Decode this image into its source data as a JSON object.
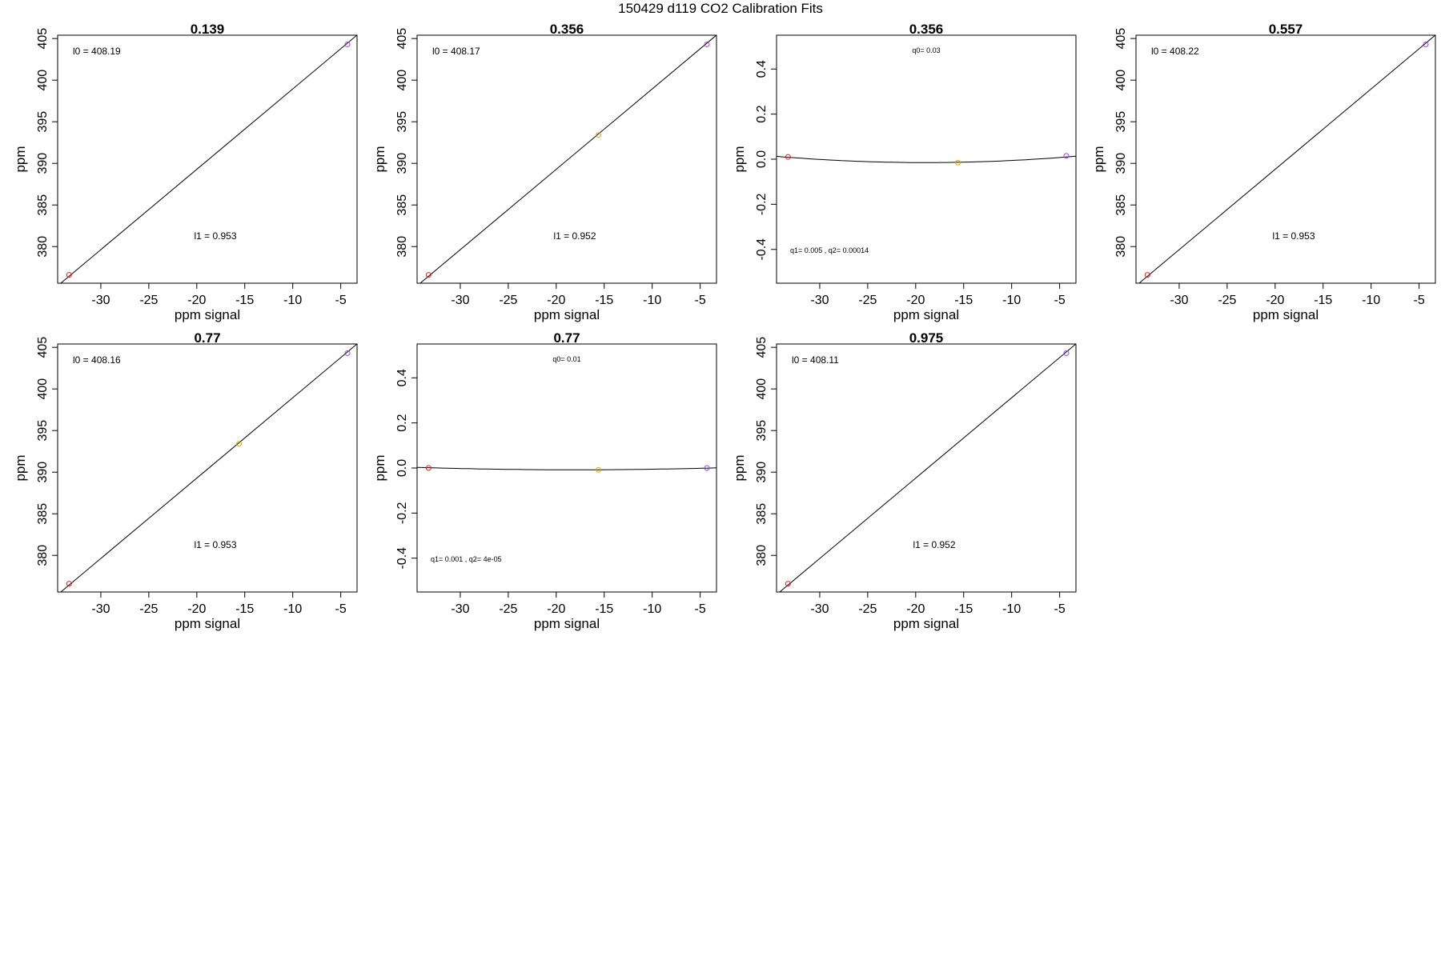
{
  "figure": {
    "title": "150429   d119   CO2 Calibration Fits"
  },
  "colors": {
    "point_low": "#e02020",
    "point_mid": "#e8a000",
    "point_high": "#a040e0",
    "fit_line": "#000000"
  },
  "chart_data": [
    {
      "type": "scatter",
      "title": "0.139",
      "xlabel": "ppm signal",
      "ylabel": "ppm",
      "xlim": [
        -34.5,
        -3.3
      ],
      "ylim": [
        375.6,
        405.4
      ],
      "xticks": [
        -30,
        -25,
        -20,
        -15,
        -10,
        -5
      ],
      "yticks": [
        380,
        385,
        390,
        395,
        400,
        405
      ],
      "fit": {
        "kind": "linear",
        "line_from": [
          -35.0,
          374.8
        ],
        "line_to": [
          -3.0,
          405.7
        ]
      },
      "points": [
        {
          "x": -33.3,
          "y": 376.6,
          "color": "red"
        },
        {
          "x": -4.3,
          "y": 404.3,
          "color": "purple"
        }
      ],
      "annotations": [
        {
          "label": "l0 =",
          "value": "408.19",
          "pos": "top-left"
        },
        {
          "label": "l1 =",
          "value": "0.953",
          "pos": "bottom-center"
        }
      ]
    },
    {
      "type": "scatter",
      "title": "0.356",
      "xlabel": "ppm signal",
      "ylabel": "ppm",
      "xlim": [
        -34.5,
        -3.3
      ],
      "ylim": [
        375.6,
        405.4
      ],
      "xticks": [
        -30,
        -25,
        -20,
        -15,
        -10,
        -5
      ],
      "yticks": [
        380,
        385,
        390,
        395,
        400,
        405
      ],
      "fit": {
        "kind": "linear",
        "line_from": [
          -35.0,
          374.8
        ],
        "line_to": [
          -3.0,
          405.7
        ]
      },
      "points": [
        {
          "x": -33.3,
          "y": 376.6,
          "color": "red"
        },
        {
          "x": -15.6,
          "y": 393.4,
          "color": "orange"
        },
        {
          "x": -4.3,
          "y": 404.3,
          "color": "purple"
        }
      ],
      "annotations": [
        {
          "label": "l0 =",
          "value": "408.17",
          "pos": "top-left"
        },
        {
          "label": "l1 =",
          "value": "0.952",
          "pos": "bottom-center"
        }
      ]
    },
    {
      "type": "scatter",
      "title": "0.356",
      "xlabel": "ppm signal",
      "ylabel": "ppm",
      "xlim": [
        -34.5,
        -3.3
      ],
      "ylim": [
        -0.55,
        0.55
      ],
      "xticks": [
        -30,
        -25,
        -20,
        -15,
        -10,
        -5
      ],
      "yticks": [
        -0.4,
        -0.2,
        0.0,
        0.2,
        0.4
      ],
      "fit": {
        "kind": "quadratic",
        "vertex_x": -19,
        "vertex_y": -0.015,
        "curvature": 0.000115
      },
      "points": [
        {
          "x": -33.3,
          "y": 0.01,
          "color": "red"
        },
        {
          "x": -15.6,
          "y": -0.015,
          "color": "orange"
        },
        {
          "x": -4.3,
          "y": 0.015,
          "color": "purple"
        }
      ],
      "annotations": [
        {
          "label": "q0=",
          "value": "0.03",
          "pos": "top-center"
        },
        {
          "label": "q1=",
          "value": "0.005 , q2= 0.00014",
          "pos": "bottom-left"
        }
      ]
    },
    {
      "type": "scatter",
      "title": "0.557",
      "xlabel": "ppm signal",
      "ylabel": "ppm",
      "xlim": [
        -34.5,
        -3.3
      ],
      "ylim": [
        375.6,
        405.4
      ],
      "xticks": [
        -30,
        -25,
        -20,
        -15,
        -10,
        -5
      ],
      "yticks": [
        380,
        385,
        390,
        395,
        400,
        405
      ],
      "fit": {
        "kind": "linear",
        "line_from": [
          -35.0,
          374.8
        ],
        "line_to": [
          -3.0,
          405.7
        ]
      },
      "points": [
        {
          "x": -33.3,
          "y": 376.6,
          "color": "red"
        },
        {
          "x": -4.3,
          "y": 404.3,
          "color": "purple"
        }
      ],
      "annotations": [
        {
          "label": "l0 =",
          "value": "408.22",
          "pos": "top-left"
        },
        {
          "label": "l1 =",
          "value": "0.953",
          "pos": "bottom-center"
        }
      ]
    },
    {
      "type": "scatter",
      "title": "0.77",
      "xlabel": "ppm signal",
      "ylabel": "ppm",
      "xlim": [
        -34.5,
        -3.3
      ],
      "ylim": [
        375.6,
        405.4
      ],
      "xticks": [
        -30,
        -25,
        -20,
        -15,
        -10,
        -5
      ],
      "yticks": [
        380,
        385,
        390,
        395,
        400,
        405
      ],
      "fit": {
        "kind": "linear",
        "line_from": [
          -35.0,
          374.8
        ],
        "line_to": [
          -3.0,
          405.7
        ]
      },
      "points": [
        {
          "x": -33.3,
          "y": 376.6,
          "color": "red"
        },
        {
          "x": -15.6,
          "y": 393.4,
          "color": "orange"
        },
        {
          "x": -4.3,
          "y": 404.3,
          "color": "purple"
        }
      ],
      "annotations": [
        {
          "label": "l0 =",
          "value": "408.16",
          "pos": "top-left"
        },
        {
          "label": "l1 =",
          "value": "0.953",
          "pos": "bottom-center"
        }
      ]
    },
    {
      "type": "scatter",
      "title": "0.77",
      "xlabel": "ppm signal",
      "ylabel": "ppm",
      "xlim": [
        -34.5,
        -3.3
      ],
      "ylim": [
        -0.55,
        0.55
      ],
      "xticks": [
        -30,
        -25,
        -20,
        -15,
        -10,
        -5
      ],
      "yticks": [
        -0.4,
        -0.2,
        0.0,
        0.2,
        0.4
      ],
      "fit": {
        "kind": "quadratic",
        "vertex_x": -18,
        "vertex_y": -0.008,
        "curvature": 4e-05
      },
      "points": [
        {
          "x": -33.3,
          "y": 0.0,
          "color": "red"
        },
        {
          "x": -15.6,
          "y": -0.008,
          "color": "orange"
        },
        {
          "x": -4.3,
          "y": 0.0,
          "color": "purple"
        }
      ],
      "annotations": [
        {
          "label": "q0=",
          "value": "0.01",
          "pos": "top-center"
        },
        {
          "label": "q1=",
          "value": "0.001 , q2= 4e-05",
          "pos": "bottom-left"
        }
      ]
    },
    {
      "type": "scatter",
      "title": "0.975",
      "xlabel": "ppm signal",
      "ylabel": "ppm",
      "xlim": [
        -34.5,
        -3.3
      ],
      "ylim": [
        375.6,
        405.4
      ],
      "xticks": [
        -30,
        -25,
        -20,
        -15,
        -10,
        -5
      ],
      "yticks": [
        380,
        385,
        390,
        395,
        400,
        405
      ],
      "fit": {
        "kind": "linear",
        "line_from": [
          -35.0,
          374.8
        ],
        "line_to": [
          -3.0,
          405.7
        ]
      },
      "points": [
        {
          "x": -33.3,
          "y": 376.6,
          "color": "red"
        },
        {
          "x": -4.3,
          "y": 404.3,
          "color": "purple"
        }
      ],
      "annotations": [
        {
          "label": "l0 =",
          "value": "408.11",
          "pos": "top-left"
        },
        {
          "label": "l1 =",
          "value": "0.952",
          "pos": "bottom-center"
        }
      ]
    }
  ]
}
